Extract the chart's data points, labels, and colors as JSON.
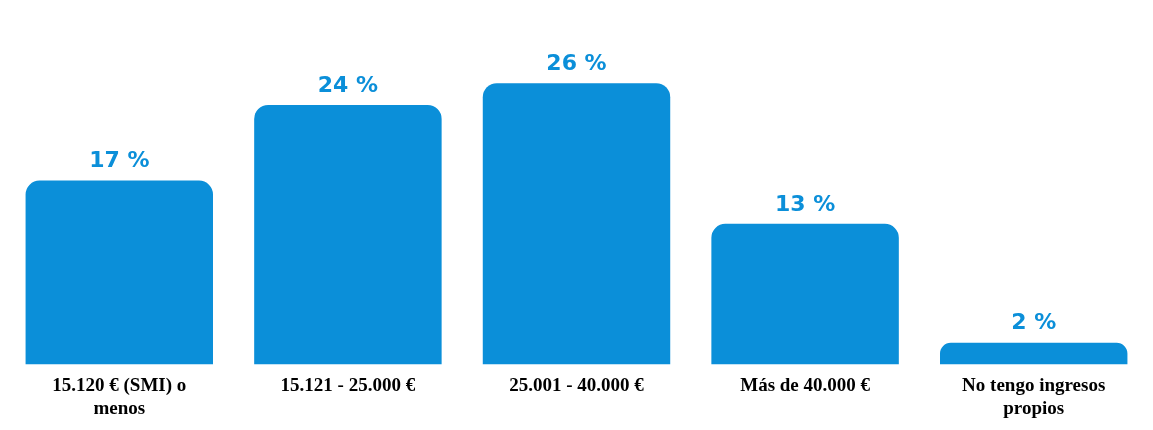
{
  "chart_data": {
    "type": "bar",
    "categories": [
      "15.120 € (SMI) o menos",
      "15.121 - 25.000 €",
      "25.001 - 40.000 €",
      "Más de 40.000 €",
      "No tengo ingresos propios"
    ],
    "values": [
      17,
      24,
      26,
      13,
      2
    ],
    "value_labels": [
      "17 %",
      "24 %",
      "26 %",
      "13 %",
      "2 %"
    ],
    "color": "#0b8fd9",
    "grid": false,
    "legend": false
  }
}
